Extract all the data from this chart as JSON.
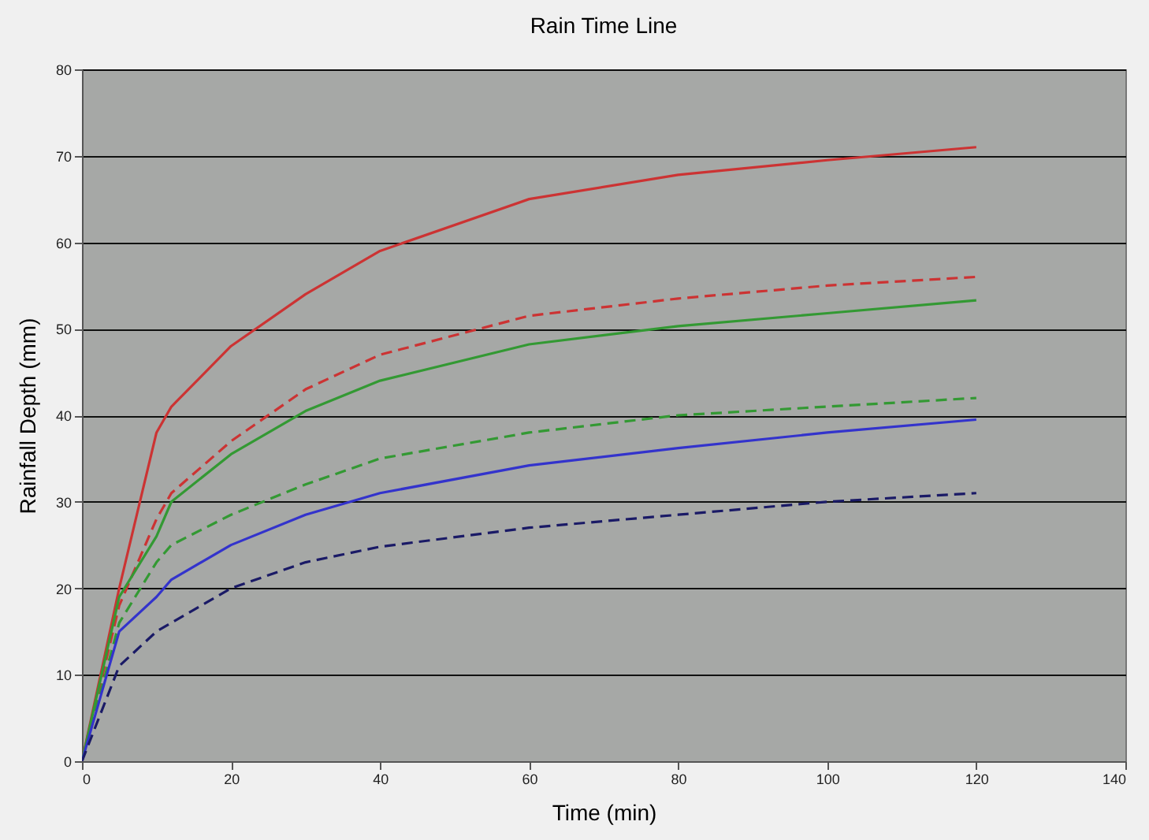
{
  "chart_data": {
    "type": "line",
    "title": "Rain Time Line",
    "xlabel": "Time (min)",
    "ylabel": "Rainfall Depth (mm)",
    "xlim": [
      0,
      140
    ],
    "xticks": [
      0,
      20,
      40,
      60,
      80,
      100,
      120,
      140
    ],
    "ylim": [
      0,
      80
    ],
    "yticks": [
      0,
      10,
      20,
      30,
      40,
      50,
      60,
      70,
      80
    ],
    "grid": "y",
    "marker": "none",
    "x": [
      0,
      5,
      10,
      12,
      20,
      30,
      40,
      60,
      80,
      100,
      120
    ],
    "series": [
      {
        "color": "#cc3333",
        "line_style": "solid",
        "values": [
          0,
          20,
          38,
          41,
          48,
          54,
          59,
          65,
          67.8,
          69.5,
          71
        ]
      },
      {
        "color": "#cc3333",
        "line_style": "dashed",
        "values": [
          0,
          18,
          28,
          31,
          37,
          43,
          47,
          51.5,
          53.5,
          55,
          56
        ]
      },
      {
        "color": "#339933",
        "line_style": "solid",
        "values": [
          0,
          19,
          26,
          30,
          35.5,
          40.5,
          44,
          48.2,
          50.3,
          51.8,
          53.3
        ]
      },
      {
        "color": "#339933",
        "line_style": "dashed",
        "values": [
          0,
          16,
          23,
          25,
          28.5,
          32,
          35,
          38,
          40,
          41,
          42
        ]
      },
      {
        "color": "#3333cc",
        "line_style": "solid",
        "values": [
          0,
          15,
          19,
          21,
          25,
          28.5,
          31,
          34.2,
          36.2,
          38,
          39.5
        ]
      },
      {
        "color": "#1a1a66",
        "line_style": "dashed",
        "values": [
          0,
          11,
          15,
          16,
          20,
          23,
          24.8,
          27,
          28.5,
          30,
          31
        ]
      }
    ]
  }
}
